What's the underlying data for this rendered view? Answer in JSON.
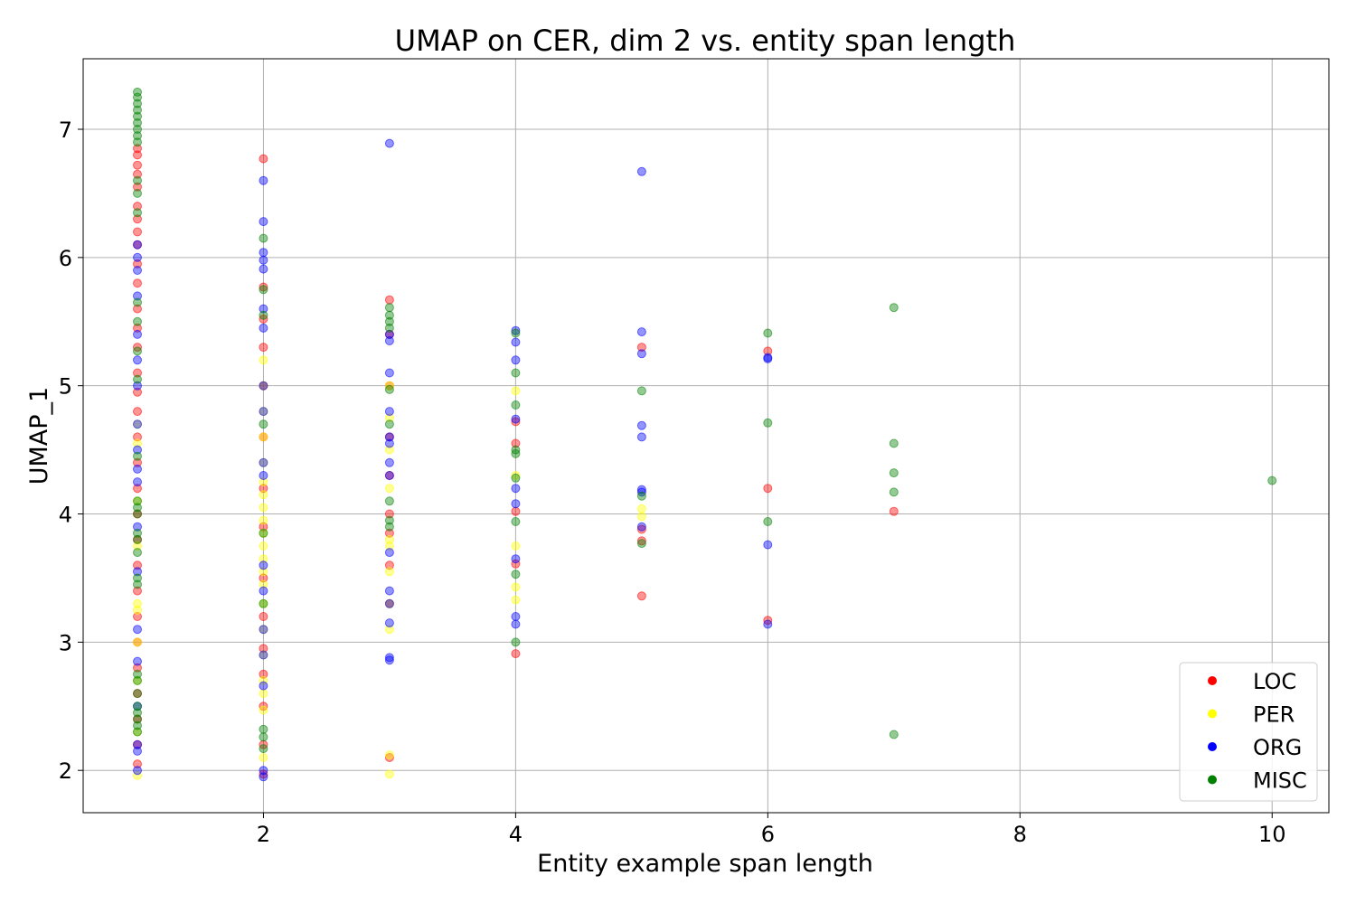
{
  "chart_data": {
    "type": "scatter",
    "title": "UMAP on CER, dim 2 vs. entity span length",
    "xlabel": "Entity example span length",
    "ylabel": "UMAP_1",
    "xlim": [
      0.57,
      10.45
    ],
    "ylim": [
      1.67,
      7.55
    ],
    "xticks": [
      2,
      4,
      6,
      8,
      10
    ],
    "yticks": [
      2,
      3,
      4,
      5,
      6,
      7
    ],
    "grid": true,
    "legend_position": "lower right",
    "series": [
      {
        "name": "LOC",
        "color": "#ff0000",
        "points": [
          [
            1,
            6.85
          ],
          [
            1,
            6.8
          ],
          [
            1,
            6.72
          ],
          [
            1,
            6.65
          ],
          [
            1,
            6.55
          ],
          [
            1,
            6.4
          ],
          [
            1,
            6.3
          ],
          [
            1,
            6.2
          ],
          [
            1,
            6.1
          ],
          [
            1,
            5.95
          ],
          [
            1,
            5.8
          ],
          [
            1,
            5.6
          ],
          [
            1,
            5.45
          ],
          [
            1,
            5.3
          ],
          [
            1,
            5.1
          ],
          [
            1,
            4.95
          ],
          [
            1,
            4.8
          ],
          [
            1,
            4.6
          ],
          [
            1,
            4.4
          ],
          [
            1,
            4.2
          ],
          [
            1,
            4.0
          ],
          [
            1,
            3.8
          ],
          [
            1,
            3.6
          ],
          [
            1,
            3.4
          ],
          [
            1,
            3.2
          ],
          [
            1,
            3.0
          ],
          [
            1,
            2.8
          ],
          [
            1,
            2.6
          ],
          [
            1,
            2.4
          ],
          [
            1,
            2.2
          ],
          [
            1,
            2.05
          ],
          [
            2,
            6.77
          ],
          [
            2,
            5.77
          ],
          [
            2,
            5.52
          ],
          [
            2,
            5.3
          ],
          [
            2,
            5.0
          ],
          [
            2,
            4.6
          ],
          [
            2,
            4.2
          ],
          [
            2,
            3.9
          ],
          [
            2,
            3.5
          ],
          [
            2,
            3.2
          ],
          [
            2,
            2.95
          ],
          [
            2,
            2.75
          ],
          [
            2,
            2.5
          ],
          [
            2,
            2.2
          ],
          [
            2,
            1.97
          ],
          [
            3,
            5.67
          ],
          [
            3,
            5.4
          ],
          [
            3,
            5.0
          ],
          [
            3,
            4.6
          ],
          [
            3,
            4.3
          ],
          [
            3,
            4.0
          ],
          [
            3,
            3.85
          ],
          [
            3,
            3.6
          ],
          [
            3,
            3.3
          ],
          [
            3,
            2.1
          ],
          [
            4,
            4.55
          ],
          [
            4,
            4.02
          ],
          [
            4,
            3.61
          ],
          [
            4,
            2.91
          ],
          [
            4,
            4.72
          ],
          [
            5,
            5.3
          ],
          [
            5,
            3.88
          ],
          [
            5,
            3.79
          ],
          [
            5,
            3.36
          ],
          [
            6,
            5.27
          ],
          [
            6,
            4.2
          ],
          [
            6,
            3.17
          ],
          [
            7,
            4.02
          ]
        ]
      },
      {
        "name": "PER",
        "color": "#ffff00",
        "points": [
          [
            1,
            4.7
          ],
          [
            1,
            4.55
          ],
          [
            1,
            4.1
          ],
          [
            1,
            3.75
          ],
          [
            1,
            3.3
          ],
          [
            1,
            3.25
          ],
          [
            1,
            3.0
          ],
          [
            1,
            2.7
          ],
          [
            1,
            2.3
          ],
          [
            1,
            1.96
          ],
          [
            2,
            5.2
          ],
          [
            2,
            5.0
          ],
          [
            2,
            4.8
          ],
          [
            2,
            4.6
          ],
          [
            2,
            4.4
          ],
          [
            2,
            4.25
          ],
          [
            2,
            4.15
          ],
          [
            2,
            4.05
          ],
          [
            2,
            3.95
          ],
          [
            2,
            3.85
          ],
          [
            2,
            3.75
          ],
          [
            2,
            3.65
          ],
          [
            2,
            3.55
          ],
          [
            2,
            3.45
          ],
          [
            2,
            3.3
          ],
          [
            2,
            3.1
          ],
          [
            2,
            2.9
          ],
          [
            2,
            2.7
          ],
          [
            2,
            2.6
          ],
          [
            2,
            2.47
          ],
          [
            2,
            2.1
          ],
          [
            3,
            5.0
          ],
          [
            3,
            4.75
          ],
          [
            3,
            4.5
          ],
          [
            3,
            4.2
          ],
          [
            3,
            3.8
          ],
          [
            3,
            3.75
          ],
          [
            3,
            3.55
          ],
          [
            3,
            3.3
          ],
          [
            3,
            3.1
          ],
          [
            3,
            2.12
          ],
          [
            3,
            1.97
          ],
          [
            4,
            4.96
          ],
          [
            4,
            4.3
          ],
          [
            4,
            3.43
          ],
          [
            4,
            3.33
          ],
          [
            4,
            3.75
          ],
          [
            5,
            4.04
          ],
          [
            5,
            3.98
          ]
        ]
      },
      {
        "name": "ORG",
        "color": "#0000ff",
        "points": [
          [
            1,
            6.1
          ],
          [
            1,
            6.0
          ],
          [
            1,
            5.9
          ],
          [
            1,
            5.7
          ],
          [
            1,
            5.4
          ],
          [
            1,
            5.2
          ],
          [
            1,
            5.0
          ],
          [
            1,
            4.7
          ],
          [
            1,
            4.5
          ],
          [
            1,
            4.35
          ],
          [
            1,
            4.25
          ],
          [
            1,
            3.9
          ],
          [
            1,
            3.55
          ],
          [
            1,
            3.1
          ],
          [
            1,
            2.85
          ],
          [
            1,
            2.5
          ],
          [
            1,
            2.2
          ],
          [
            1,
            2.15
          ],
          [
            1,
            2.0
          ],
          [
            2,
            6.6
          ],
          [
            2,
            6.28
          ],
          [
            2,
            6.04
          ],
          [
            2,
            5.98
          ],
          [
            2,
            5.91
          ],
          [
            2,
            5.6
          ],
          [
            2,
            5.45
          ],
          [
            2,
            5.0
          ],
          [
            2,
            4.8
          ],
          [
            2,
            4.4
          ],
          [
            2,
            4.3
          ],
          [
            2,
            3.6
          ],
          [
            2,
            3.4
          ],
          [
            2,
            3.1
          ],
          [
            2,
            2.9
          ],
          [
            2,
            2.66
          ],
          [
            2,
            2.0
          ],
          [
            2,
            1.95
          ],
          [
            3,
            6.89
          ],
          [
            3,
            5.4
          ],
          [
            3,
            5.35
          ],
          [
            3,
            5.1
          ],
          [
            3,
            4.8
          ],
          [
            3,
            4.6
          ],
          [
            3,
            4.55
          ],
          [
            3,
            4.4
          ],
          [
            3,
            4.3
          ],
          [
            3,
            3.7
          ],
          [
            3,
            3.4
          ],
          [
            3,
            3.3
          ],
          [
            3,
            3.15
          ],
          [
            3,
            2.88
          ],
          [
            3,
            2.86
          ],
          [
            4,
            5.43
          ],
          [
            4,
            5.34
          ],
          [
            4,
            5.2
          ],
          [
            4,
            4.74
          ],
          [
            4,
            4.2
          ],
          [
            4,
            4.08
          ],
          [
            4,
            3.65
          ],
          [
            4,
            3.2
          ],
          [
            4,
            3.14
          ],
          [
            5,
            6.67
          ],
          [
            5,
            5.42
          ],
          [
            5,
            5.25
          ],
          [
            5,
            4.69
          ],
          [
            5,
            4.6
          ],
          [
            5,
            4.19
          ],
          [
            5,
            4.17
          ],
          [
            5,
            3.9
          ],
          [
            6,
            5.22
          ],
          [
            6,
            5.21
          ],
          [
            6,
            3.76
          ],
          [
            6,
            3.14
          ]
        ]
      },
      {
        "name": "MISC",
        "color": "#008000",
        "points": [
          [
            1,
            7.29
          ],
          [
            1,
            7.25
          ],
          [
            1,
            7.2
          ],
          [
            1,
            7.15
          ],
          [
            1,
            7.1
          ],
          [
            1,
            7.05
          ],
          [
            1,
            7.0
          ],
          [
            1,
            6.95
          ],
          [
            1,
            6.9
          ],
          [
            1,
            6.6
          ],
          [
            1,
            6.5
          ],
          [
            1,
            6.35
          ],
          [
            1,
            5.65
          ],
          [
            1,
            5.5
          ],
          [
            1,
            5.27
          ],
          [
            1,
            5.05
          ],
          [
            1,
            4.45
          ],
          [
            1,
            4.1
          ],
          [
            1,
            4.05
          ],
          [
            1,
            4.0
          ],
          [
            1,
            3.85
          ],
          [
            1,
            3.8
          ],
          [
            1,
            3.7
          ],
          [
            1,
            3.5
          ],
          [
            1,
            3.45
          ],
          [
            1,
            2.75
          ],
          [
            1,
            2.7
          ],
          [
            1,
            2.6
          ],
          [
            1,
            2.5
          ],
          [
            1,
            2.45
          ],
          [
            1,
            2.4
          ],
          [
            1,
            2.35
          ],
          [
            1,
            2.3
          ],
          [
            2,
            6.15
          ],
          [
            2,
            5.75
          ],
          [
            2,
            5.55
          ],
          [
            2,
            4.7
          ],
          [
            2,
            3.85
          ],
          [
            2,
            3.3
          ],
          [
            2,
            2.32
          ],
          [
            2,
            2.26
          ],
          [
            2,
            2.17
          ],
          [
            3,
            5.61
          ],
          [
            3,
            5.55
          ],
          [
            3,
            5.5
          ],
          [
            3,
            5.45
          ],
          [
            3,
            4.97
          ],
          [
            3,
            4.7
          ],
          [
            3,
            4.1
          ],
          [
            3,
            3.95
          ],
          [
            3,
            3.9
          ],
          [
            4,
            5.41
          ],
          [
            4,
            5.1
          ],
          [
            4,
            4.85
          ],
          [
            4,
            4.5
          ],
          [
            4,
            4.47
          ],
          [
            4,
            4.28
          ],
          [
            4,
            3.94
          ],
          [
            4,
            3.53
          ],
          [
            4,
            3.0
          ],
          [
            5,
            4.96
          ],
          [
            5,
            4.14
          ],
          [
            5,
            3.77
          ],
          [
            6,
            5.41
          ],
          [
            6,
            4.71
          ],
          [
            6,
            3.94
          ],
          [
            7,
            5.61
          ],
          [
            7,
            4.55
          ],
          [
            7,
            4.32
          ],
          [
            7,
            4.17
          ],
          [
            7,
            2.28
          ],
          [
            10,
            4.26
          ]
        ]
      }
    ]
  }
}
